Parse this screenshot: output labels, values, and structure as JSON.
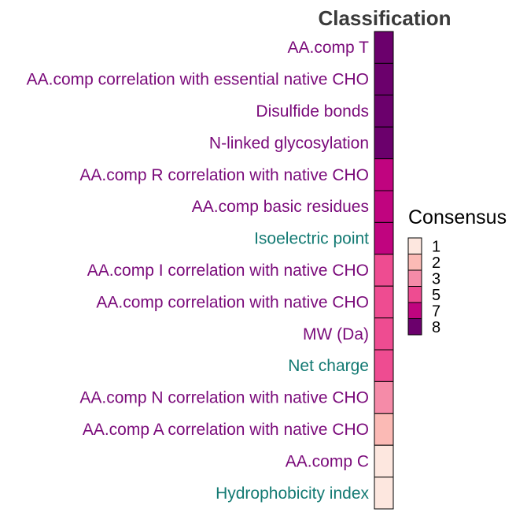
{
  "chart_data": {
    "type": "heatmap",
    "title": "Classification",
    "rows": [
      {
        "label": "AA.comp T",
        "value": 8,
        "group": "purple"
      },
      {
        "label": "AA.comp correlation with essential native CHO",
        "value": 8,
        "group": "purple"
      },
      {
        "label": "Disulfide bonds",
        "value": 8,
        "group": "purple"
      },
      {
        "label": "N-linked glycosylation",
        "value": 8,
        "group": "purple"
      },
      {
        "label": "AA.comp R correlation with native CHO",
        "value": 7,
        "group": "purple"
      },
      {
        "label": "AA.comp basic residues",
        "value": 7,
        "group": "purple"
      },
      {
        "label": "Isoelectric point",
        "value": 7,
        "group": "teal"
      },
      {
        "label": "AA.comp I correlation with native CHO",
        "value": 5,
        "group": "purple"
      },
      {
        "label": "AA.comp correlation with native CHO",
        "value": 5,
        "group": "purple"
      },
      {
        "label": "MW (Da)",
        "value": 5,
        "group": "purple"
      },
      {
        "label": "Net charge",
        "value": 5,
        "group": "teal"
      },
      {
        "label": "AA.comp N correlation with native CHO",
        "value": 3,
        "group": "purple"
      },
      {
        "label": "AA.comp A correlation with native CHO",
        "value": 2,
        "group": "purple"
      },
      {
        "label": "AA.comp C",
        "value": 1,
        "group": "purple"
      },
      {
        "label": "Hydrophobicity index",
        "value": 1,
        "group": "teal"
      }
    ],
    "group_colors": {
      "purple": "#7a0a7a",
      "teal": "#137a73"
    },
    "legend": {
      "title": "Consensus",
      "placement": "right",
      "entries": [
        {
          "label": "1",
          "color": "#fde7df"
        },
        {
          "label": "2",
          "color": "#fbbab5"
        },
        {
          "label": "3",
          "color": "#f58ba8"
        },
        {
          "label": "5",
          "color": "#ee4c91"
        },
        {
          "label": "7",
          "color": "#c0047f"
        },
        {
          "label": "8",
          "color": "#6b006c"
        }
      ]
    }
  }
}
